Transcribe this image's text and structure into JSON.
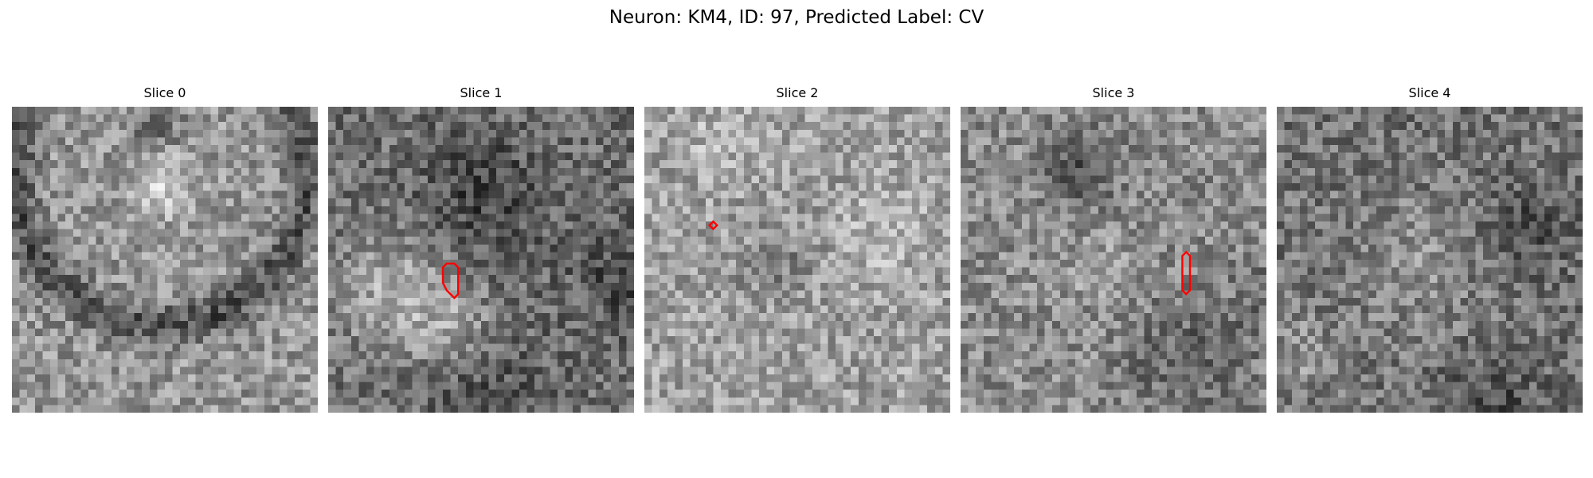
{
  "title": "Neuron: KM4, ID: 97, Predicted Label: CV",
  "outline_color": "#ff0000",
  "slices": [
    {
      "title": "Slice 0",
      "outline": []
    },
    {
      "title": "Slice 1",
      "outline": [
        [
          15.5,
          20.5
        ],
        [
          16.5,
          20.5
        ],
        [
          17,
          21
        ],
        [
          17,
          24.5
        ],
        [
          16.5,
          25
        ],
        [
          15.5,
          24
        ],
        [
          15,
          23
        ],
        [
          15,
          21
        ]
      ]
    },
    {
      "title": "Slice 2",
      "outline": [
        [
          9,
          15
        ],
        [
          9.5,
          15.5
        ],
        [
          9,
          16
        ],
        [
          8.5,
          15.5
        ]
      ]
    },
    {
      "title": "Slice 3",
      "outline": [
        [
          29.5,
          19
        ],
        [
          30,
          19.5
        ],
        [
          30,
          24
        ],
        [
          29.5,
          24.5
        ],
        [
          29,
          24
        ],
        [
          29,
          19.5
        ]
      ]
    },
    {
      "title": "Slice 4",
      "outline": []
    }
  ]
}
